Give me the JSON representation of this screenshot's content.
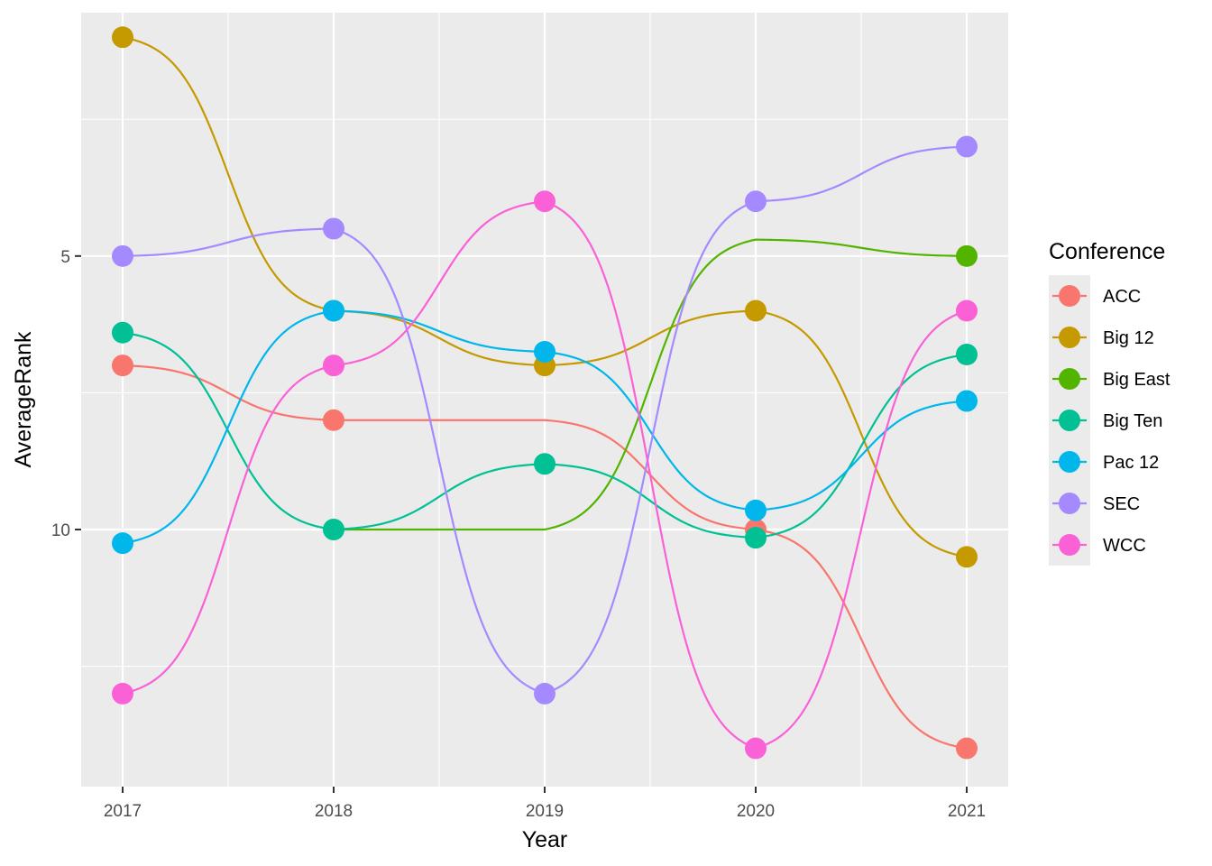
{
  "chart_data": {
    "type": "line",
    "title": "",
    "xlabel": "Year",
    "ylabel": "AverageRank",
    "x": [
      2017,
      2018,
      2019,
      2020,
      2021
    ],
    "x_tick_labels": [
      "2017",
      "2018",
      "2019",
      "2020",
      "2021"
    ],
    "y_tick_values": [
      5,
      10
    ],
    "y_tick_labels": [
      "5",
      "10"
    ],
    "y_reversed": true,
    "ylim": [
      0.55,
      14.7
    ],
    "grid": true,
    "background": "#ebebeb",
    "legend": {
      "title": "Conference",
      "position": "right"
    },
    "series": [
      {
        "name": "ACC",
        "color": "#F8766D",
        "values": [
          7.0,
          8.0,
          null,
          10.0,
          14.0
        ]
      },
      {
        "name": "Big 12",
        "color": "#C49A00",
        "values": [
          1.0,
          6.0,
          7.0,
          6.0,
          10.5
        ]
      },
      {
        "name": "Big East",
        "color": "#53B400",
        "values": [
          null,
          null,
          null,
          null,
          5.0
        ]
      },
      {
        "name": "Big Ten",
        "color": "#00C094",
        "values": [
          6.4,
          10.0,
          8.8,
          10.15,
          6.8
        ]
      },
      {
        "name": "Pac 12",
        "color": "#00B6EB",
        "values": [
          10.25,
          6.0,
          6.75,
          9.65,
          7.65
        ]
      },
      {
        "name": "SEC",
        "color": "#A58AFF",
        "values": [
          5.0,
          4.5,
          13.0,
          4.0,
          3.0
        ]
      },
      {
        "name": "WCC",
        "color": "#FB61D7",
        "values": [
          13.0,
          7.0,
          4.0,
          14.0,
          6.0
        ]
      }
    ],
    "lines": [
      {
        "name": "ACC",
        "values": [
          7.0,
          8.0,
          8.0,
          10.0,
          14.0
        ]
      },
      {
        "name": "Big 12",
        "values": [
          1.0,
          6.0,
          7.0,
          6.0,
          10.5
        ]
      },
      {
        "name": "Big East",
        "values": [
          null,
          null,
          10.0,
          4.7,
          5.0
        ],
        "x_start": 2018
      },
      {
        "name": "Big Ten",
        "values": [
          6.4,
          10.0,
          8.8,
          10.15,
          6.8
        ]
      },
      {
        "name": "Pac 12",
        "values": [
          10.25,
          6.0,
          6.75,
          9.65,
          7.65
        ]
      },
      {
        "name": "SEC",
        "values": [
          5.0,
          4.5,
          13.0,
          4.0,
          3.0
        ]
      },
      {
        "name": "WCC",
        "values": [
          13.0,
          7.0,
          4.0,
          14.0,
          6.0
        ]
      }
    ]
  }
}
